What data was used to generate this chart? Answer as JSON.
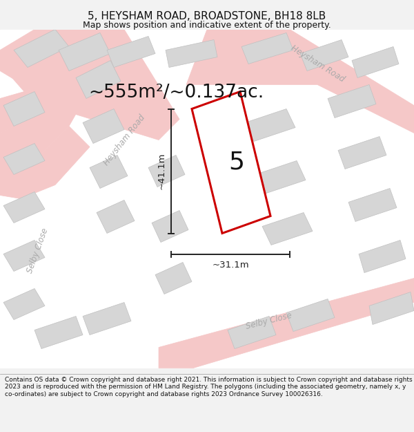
{
  "title_line1": "5, HEYSHAM ROAD, BROADSTONE, BH18 8LB",
  "title_line2": "Map shows position and indicative extent of the property.",
  "area_text": "~555m²/~0.137ac.",
  "property_number": "5",
  "dim_vertical": "~41.1m",
  "dim_horizontal": "~31.1m",
  "road_label_left": "Heysham Road",
  "road_label_right": "Heysham Road",
  "road_label_bottom": "Selby Close",
  "road_label_bl": "Selby Close",
  "footer_text": "Contains OS data © Crown copyright and database right 2021. This information is subject to Crown copyright and database rights 2023 and is reproduced with the permission of HM Land Registry. The polygons (including the associated geometry, namely x, y co-ordinates) are subject to Crown copyright and database rights 2023 Ordnance Survey 100026316.",
  "bg_color": "#f2f2f2",
  "map_bg": "#ffffff",
  "road_color": "#f5c8c8",
  "building_color": "#d6d6d6",
  "building_edge": "#c0c0c0",
  "property_outline_color": "#cc0000",
  "dim_color": "#222222",
  "title_fontsize": 11,
  "subtitle_fontsize": 9,
  "area_fontsize": 19,
  "property_num_fontsize": 26,
  "footer_fontsize": 6.5
}
